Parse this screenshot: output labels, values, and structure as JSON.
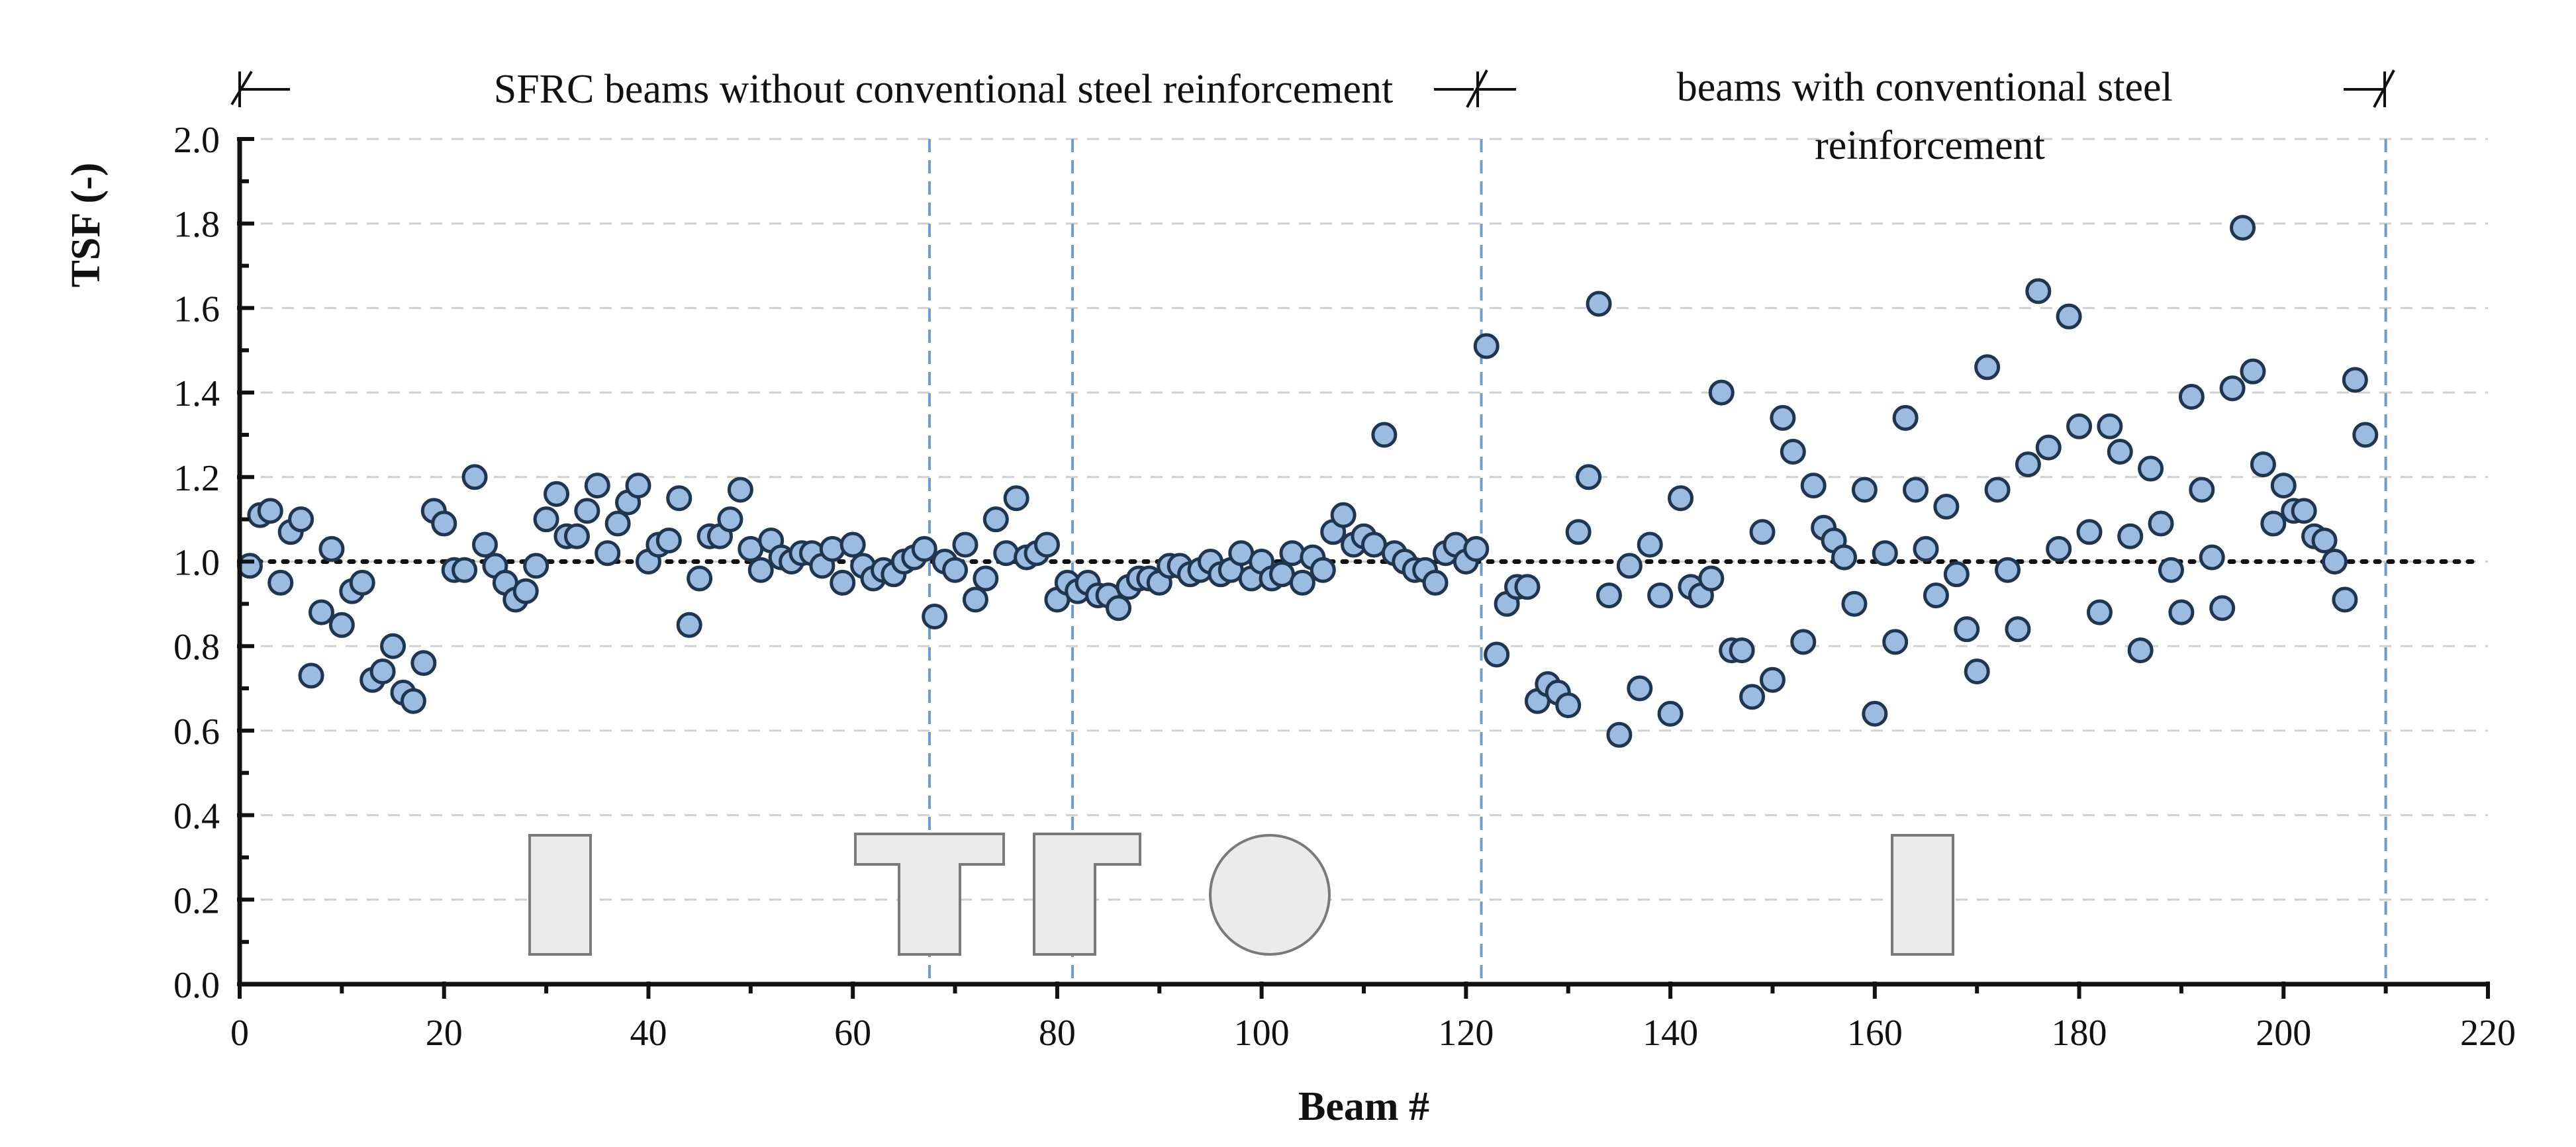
{
  "chart_data": {
    "type": "scatter",
    "title": "",
    "xlabel": "Beam #",
    "ylabel": "TSF (-)",
    "xlim": [
      0,
      220
    ],
    "ylim": [
      0.0,
      2.0
    ],
    "x_ticks": [
      0,
      20,
      40,
      60,
      80,
      100,
      120,
      140,
      160,
      180,
      200,
      220
    ],
    "y_ticks": [
      0.0,
      0.2,
      0.4,
      0.6,
      0.8,
      1.0,
      1.2,
      1.4,
      1.6,
      1.8,
      2.0
    ],
    "grid": true,
    "reference_line": {
      "y": 1.0,
      "style": "dotted"
    },
    "group_dividers_x": [
      67.5,
      81.5,
      121.5,
      210
    ],
    "band_labels": [
      {
        "text": "SFRC beams without conventional steel reinforcement"
      },
      {
        "text": "beams with conventional steel reinforcement"
      }
    ],
    "section_icons": [
      "rectangular-section",
      "t-section-flange-both",
      "t-section-flange-one",
      "circular-section",
      "rectangular-section-reinforced"
    ],
    "series": [
      {
        "name": "TSF",
        "x": [
          1,
          2,
          3,
          4,
          5,
          6,
          7,
          8,
          9,
          10,
          11,
          12,
          13,
          14,
          15,
          16,
          17,
          18,
          19,
          20,
          21,
          22,
          23,
          24,
          25,
          26,
          27,
          28,
          29,
          30,
          31,
          32,
          33,
          34,
          35,
          36,
          37,
          38,
          39,
          40,
          41,
          42,
          43,
          44,
          45,
          46,
          47,
          48,
          49,
          50,
          51,
          52,
          53,
          54,
          55,
          56,
          57,
          58,
          59,
          60,
          61,
          62,
          63,
          64,
          65,
          66,
          67,
          68,
          69,
          70,
          71,
          72,
          73,
          74,
          75,
          76,
          77,
          78,
          79,
          80,
          81,
          82,
          83,
          84,
          85,
          86,
          87,
          88,
          89,
          90,
          91,
          92,
          93,
          94,
          95,
          96,
          97,
          98,
          99,
          100,
          101,
          102,
          103,
          104,
          105,
          106,
          107,
          108,
          109,
          110,
          111,
          112,
          113,
          114,
          115,
          116,
          117,
          118,
          119,
          120,
          121,
          122,
          123,
          124,
          125,
          126,
          127,
          128,
          129,
          130,
          131,
          132,
          133,
          134,
          135,
          136,
          137,
          138,
          139,
          140,
          141,
          142,
          143,
          144,
          145,
          146,
          147,
          148,
          149,
          150,
          151,
          152,
          153,
          154,
          155,
          156,
          157,
          158,
          159,
          160,
          161,
          162,
          163,
          164,
          165,
          166,
          167,
          168,
          169,
          170,
          171,
          172,
          173,
          174,
          175,
          176,
          177,
          178,
          179,
          180,
          181,
          182,
          183,
          184,
          185,
          186,
          187,
          188,
          189,
          190,
          191,
          192,
          193,
          194,
          195,
          196,
          197,
          198,
          199,
          200,
          201,
          202,
          203,
          204,
          205,
          206,
          207,
          208
        ],
        "y": [
          0.99,
          1.11,
          1.12,
          0.95,
          1.07,
          1.1,
          0.73,
          0.88,
          1.03,
          0.85,
          0.93,
          0.95,
          0.72,
          0.74,
          0.8,
          0.69,
          0.67,
          0.76,
          1.12,
          1.09,
          0.98,
          0.98,
          1.2,
          1.04,
          0.99,
          0.95,
          0.91,
          0.93,
          0.99,
          1.1,
          1.16,
          1.06,
          1.06,
          1.12,
          1.18,
          1.02,
          1.09,
          1.14,
          1.18,
          1.0,
          1.04,
          1.05,
          1.15,
          0.85,
          0.96,
          1.06,
          1.06,
          1.1,
          1.17,
          1.03,
          0.98,
          1.05,
          1.01,
          1.0,
          1.02,
          1.02,
          0.99,
          1.03,
          0.95,
          1.04,
          0.99,
          0.96,
          0.98,
          0.97,
          1.0,
          1.01,
          1.03,
          0.87,
          1.0,
          0.98,
          1.04,
          0.91,
          0.96,
          1.1,
          1.02,
          1.15,
          1.01,
          1.02,
          1.04,
          0.91,
          0.95,
          0.93,
          0.95,
          0.92,
          0.92,
          0.89,
          0.94,
          0.96,
          0.96,
          0.95,
          0.99,
          0.99,
          0.97,
          0.98,
          1.0,
          0.97,
          0.98,
          1.02,
          0.96,
          1.0,
          0.96,
          0.97,
          1.02,
          0.95,
          1.01,
          0.98,
          1.07,
          1.11,
          1.04,
          1.06,
          1.04,
          1.3,
          1.02,
          1.0,
          0.98,
          0.98,
          0.95,
          1.02,
          1.04,
          1.0,
          1.03,
          1.51,
          0.78,
          0.9,
          0.94,
          0.94,
          0.67,
          0.71,
          0.69,
          0.66,
          1.07,
          1.2,
          1.61,
          0.92,
          0.59,
          0.99,
          0.7,
          1.04,
          0.92,
          0.64,
          1.15,
          0.94,
          0.92,
          0.96,
          1.4,
          0.79,
          0.79,
          0.68,
          1.07,
          0.72,
          1.34,
          1.26,
          0.81,
          1.18,
          1.08,
          1.05,
          1.01,
          0.9,
          1.17,
          0.64,
          1.02,
          0.81,
          1.34,
          1.17,
          1.03,
          0.92,
          1.13,
          0.97,
          0.84,
          0.74,
          1.46,
          1.17,
          0.98,
          0.84,
          1.23,
          1.64,
          1.27,
          1.03,
          1.58,
          1.32,
          1.07,
          0.88,
          1.32,
          1.26,
          1.06,
          0.79,
          1.22,
          1.09,
          0.98,
          0.88,
          1.39,
          1.17,
          1.01,
          0.89,
          1.41,
          1.79,
          1.45,
          1.23,
          1.09,
          1.18,
          1.12,
          1.12,
          1.06,
          1.05,
          1.0,
          0.91,
          1.43,
          1.3
        ]
      }
    ]
  }
}
